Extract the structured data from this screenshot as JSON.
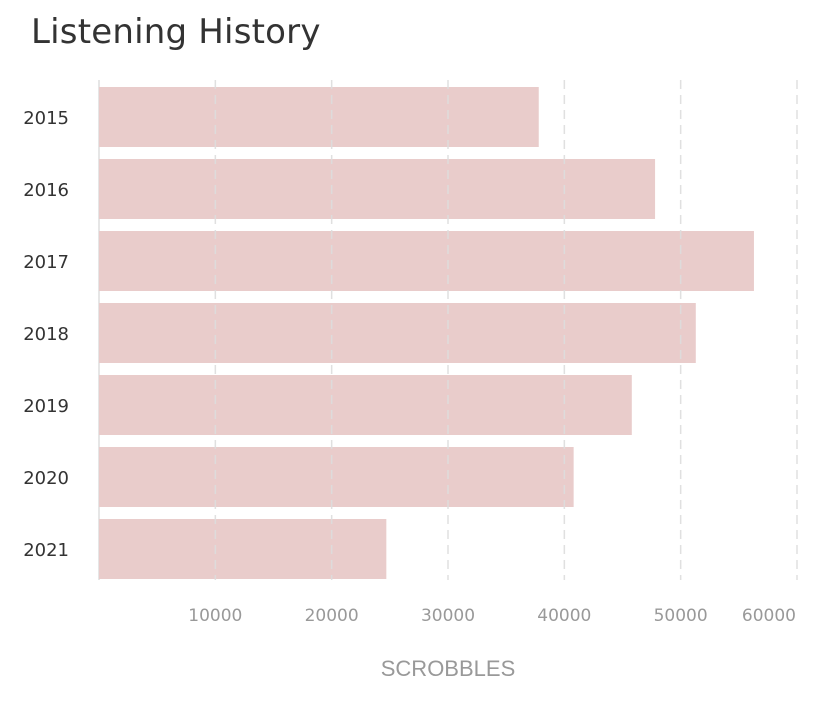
{
  "chart_data": {
    "type": "bar",
    "orientation": "horizontal",
    "title": "Listening History",
    "xlabel": "SCROBBLES",
    "ylabel": "",
    "categories": [
      "2015",
      "2016",
      "2017",
      "2018",
      "2019",
      "2020",
      "2021"
    ],
    "values": [
      37800,
      47800,
      56300,
      51300,
      45800,
      40800,
      24700
    ],
    "xlim": [
      0,
      60000
    ],
    "xticks": [
      10000,
      20000,
      30000,
      40000,
      50000,
      60000
    ],
    "grid": true,
    "legend": "none"
  },
  "colors": {
    "bar": "#e9cccb",
    "grid": "#dddddd",
    "tick_text": "#999999",
    "category_text": "#333333",
    "axis_line": "#dddddd"
  }
}
